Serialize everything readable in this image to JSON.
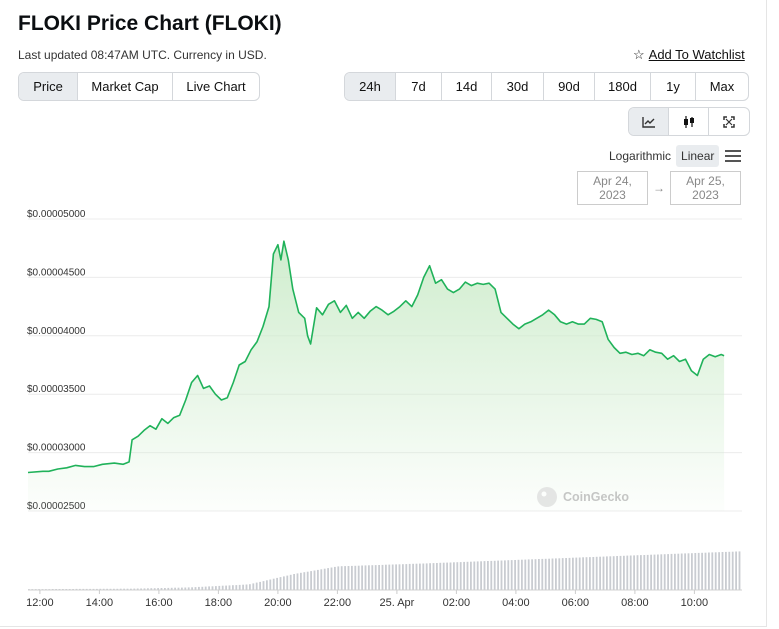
{
  "header": {
    "title": "FLOKI Price Chart (FLOKI)",
    "subtitle": "Last updated 08:47AM UTC. Currency in USD.",
    "watchlist_label": "Add To Watchlist",
    "watchlist_icon": "star-outline-icon"
  },
  "tabs": [
    "Price",
    "Market Cap",
    "Live Chart"
  ],
  "active_tab": "Price",
  "ranges": [
    "24h",
    "7d",
    "14d",
    "30d",
    "90d",
    "180d",
    "1y",
    "Max"
  ],
  "active_range": "24h",
  "chart_type_buttons": [
    "line-chart-icon",
    "candlestick-icon",
    "fullscreen-icon"
  ],
  "scale": {
    "options": [
      "Logarithmic",
      "Linear"
    ],
    "active": "Linear",
    "menu_icon": "hamburger-menu-icon"
  },
  "date_range": {
    "from": "Apr 24, 2023",
    "arrow": "→",
    "to": "Apr 25, 2023"
  },
  "watermark": {
    "text": "CoinGecko",
    "icon": "coingecko-logo-icon"
  },
  "colors": {
    "line": "#20b25a",
    "fill_top": "#cdeccb",
    "volume": "#c9ccd1",
    "grid": "#ececec",
    "active_btn": "#e9ecef"
  },
  "chart_data": {
    "type": "area",
    "x_unit": "hours since 12:00 (Apr 24, 2023)",
    "y_ticks": [
      2.5e-05,
      3e-05,
      3.5e-05,
      4e-05,
      4.5e-05,
      5e-05
    ],
    "y_tick_labels": [
      "$0.00002500",
      "$0.00003000",
      "$0.00003500",
      "$0.00004000",
      "$0.00004500",
      "$0.00005000"
    ],
    "ylim": [
      2.5e-05,
      5e-05
    ],
    "x_ticks": [
      0,
      2,
      4,
      6,
      8,
      10,
      12,
      14,
      16,
      18,
      20,
      22
    ],
    "x_tick_labels": [
      "12:00",
      "14:00",
      "16:00",
      "18:00",
      "20:00",
      "22:00",
      "25. Apr",
      "02:00",
      "04:00",
      "06:00",
      "08:00",
      "10:00"
    ],
    "xlim": [
      -0.4,
      23.6
    ],
    "grid": true,
    "series": [
      {
        "values": [
          [
            -0.4,
            2.83e-05
          ],
          [
            0.1,
            2.84e-05
          ],
          [
            0.3,
            2.84e-05
          ],
          [
            0.6,
            2.86e-05
          ],
          [
            0.9,
            2.87e-05
          ],
          [
            1.2,
            2.89e-05
          ],
          [
            1.5,
            2.88e-05
          ],
          [
            1.8,
            2.88e-05
          ],
          [
            2.1,
            2.9e-05
          ],
          [
            2.5,
            2.91e-05
          ],
          [
            2.8,
            2.9e-05
          ],
          [
            3.0,
            2.92e-05
          ],
          [
            3.1,
            3.11e-05
          ],
          [
            3.3,
            3.14e-05
          ],
          [
            3.5,
            3.19e-05
          ],
          [
            3.7,
            3.23e-05
          ],
          [
            3.9,
            3.2e-05
          ],
          [
            4.1,
            3.29e-05
          ],
          [
            4.3,
            3.25e-05
          ],
          [
            4.5,
            3.3e-05
          ],
          [
            4.7,
            3.32e-05
          ],
          [
            4.9,
            3.45e-05
          ],
          [
            5.1,
            3.6e-05
          ],
          [
            5.3,
            3.66e-05
          ],
          [
            5.5,
            3.55e-05
          ],
          [
            5.7,
            3.57e-05
          ],
          [
            5.9,
            3.5e-05
          ],
          [
            6.1,
            3.45e-05
          ],
          [
            6.3,
            3.47e-05
          ],
          [
            6.5,
            3.6e-05
          ],
          [
            6.7,
            3.75e-05
          ],
          [
            6.9,
            3.78e-05
          ],
          [
            7.1,
            3.88e-05
          ],
          [
            7.3,
            3.95e-05
          ],
          [
            7.5,
            4.08e-05
          ],
          [
            7.7,
            4.25e-05
          ],
          [
            7.85,
            4.7e-05
          ],
          [
            8.0,
            4.78e-05
          ],
          [
            8.1,
            4.65e-05
          ],
          [
            8.2,
            4.81e-05
          ],
          [
            8.35,
            4.65e-05
          ],
          [
            8.5,
            4.4e-05
          ],
          [
            8.7,
            4.2e-05
          ],
          [
            8.9,
            4.15e-05
          ],
          [
            9.0,
            4e-05
          ],
          [
            9.1,
            3.93e-05
          ],
          [
            9.3,
            4.24e-05
          ],
          [
            9.5,
            4.18e-05
          ],
          [
            9.7,
            4.27e-05
          ],
          [
            9.9,
            4.3e-05
          ],
          [
            10.1,
            4.2e-05
          ],
          [
            10.3,
            4.26e-05
          ],
          [
            10.5,
            4.15e-05
          ],
          [
            10.7,
            4.2e-05
          ],
          [
            10.9,
            4.15e-05
          ],
          [
            11.1,
            4.21e-05
          ],
          [
            11.3,
            4.25e-05
          ],
          [
            11.5,
            4.22e-05
          ],
          [
            11.7,
            4.18e-05
          ],
          [
            11.9,
            4.21e-05
          ],
          [
            12.1,
            4.25e-05
          ],
          [
            12.3,
            4.3e-05
          ],
          [
            12.5,
            4.25e-05
          ],
          [
            12.7,
            4.35e-05
          ],
          [
            12.9,
            4.5e-05
          ],
          [
            13.1,
            4.6e-05
          ],
          [
            13.3,
            4.45e-05
          ],
          [
            13.5,
            4.48e-05
          ],
          [
            13.7,
            4.4e-05
          ],
          [
            13.9,
            4.37e-05
          ],
          [
            14.1,
            4.4e-05
          ],
          [
            14.3,
            4.46e-05
          ],
          [
            14.5,
            4.43e-05
          ],
          [
            14.7,
            4.45e-05
          ],
          [
            14.9,
            4.44e-05
          ],
          [
            15.1,
            4.45e-05
          ],
          [
            15.3,
            4.4e-05
          ],
          [
            15.5,
            4.2e-05
          ],
          [
            15.7,
            4.15e-05
          ],
          [
            15.9,
            4.1e-05
          ],
          [
            16.1,
            4.06e-05
          ],
          [
            16.3,
            4.1e-05
          ],
          [
            16.5,
            4.12e-05
          ],
          [
            16.7,
            4.15e-05
          ],
          [
            16.9,
            4.18e-05
          ],
          [
            17.1,
            4.22e-05
          ],
          [
            17.3,
            4.18e-05
          ],
          [
            17.5,
            4.12e-05
          ],
          [
            17.7,
            4.1e-05
          ],
          [
            17.9,
            4.12e-05
          ],
          [
            18.1,
            4.1e-05
          ],
          [
            18.3,
            4.1e-05
          ],
          [
            18.5,
            4.15e-05
          ],
          [
            18.7,
            4.14e-05
          ],
          [
            18.9,
            4.12e-05
          ],
          [
            19.1,
            3.97e-05
          ],
          [
            19.3,
            3.9e-05
          ],
          [
            19.5,
            3.85e-05
          ],
          [
            19.7,
            3.86e-05
          ],
          [
            19.9,
            3.84e-05
          ],
          [
            20.1,
            3.85e-05
          ],
          [
            20.3,
            3.83e-05
          ],
          [
            20.5,
            3.88e-05
          ],
          [
            20.7,
            3.86e-05
          ],
          [
            20.9,
            3.85e-05
          ],
          [
            21.1,
            3.8e-05
          ],
          [
            21.3,
            3.83e-05
          ],
          [
            21.5,
            3.78e-05
          ],
          [
            21.7,
            3.8e-05
          ],
          [
            21.9,
            3.7e-05
          ],
          [
            22.1,
            3.66e-05
          ],
          [
            22.3,
            3.8e-05
          ],
          [
            22.5,
            3.84e-05
          ],
          [
            22.7,
            3.82e-05
          ],
          [
            22.9,
            3.84e-05
          ],
          [
            23.0,
            3.83e-05
          ]
        ]
      }
    ],
    "volume_trend": [
      [
        -0.4,
        0.02
      ],
      [
        3.0,
        0.03
      ],
      [
        5.0,
        0.06
      ],
      [
        7.0,
        0.13
      ],
      [
        8.5,
        0.37
      ],
      [
        10.0,
        0.55
      ],
      [
        13.0,
        0.62
      ],
      [
        16.0,
        0.7
      ],
      [
        19.0,
        0.78
      ],
      [
        22.0,
        0.86
      ],
      [
        23.6,
        0.9
      ]
    ]
  }
}
